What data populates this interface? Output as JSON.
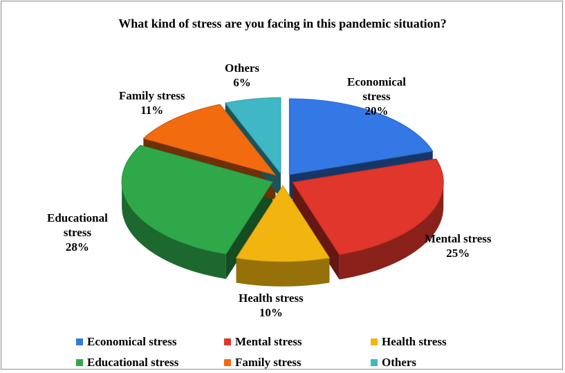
{
  "chart_data": {
    "type": "pie",
    "title": "What kind of stress are you facing in this pandemic situation?",
    "slices": [
      {
        "name": "Economical stress",
        "label_lines": [
          "Economical",
          "stress"
        ],
        "percent_label": "20%",
        "value": 20,
        "color": "#3478e6"
      },
      {
        "name": "Mental stress",
        "label_lines": [
          "Mental stress"
        ],
        "percent_label": "25%",
        "value": 25,
        "color": "#e0362b"
      },
      {
        "name": "Health stress",
        "label_lines": [
          "Health stress"
        ],
        "percent_label": "10%",
        "value": 10,
        "color": "#f2b50f"
      },
      {
        "name": "Educational stress",
        "label_lines": [
          "Educational",
          "stress"
        ],
        "percent_label": "28%",
        "value": 28,
        "color": "#2fa84a"
      },
      {
        "name": "Family stress",
        "label_lines": [
          "Family stress"
        ],
        "percent_label": "11%",
        "value": 11,
        "color": "#f26b0f"
      },
      {
        "name": "Others",
        "label_lines": [
          "Others"
        ],
        "percent_label": "6%",
        "value": 6,
        "color": "#3fb7c4"
      }
    ],
    "legend_position": "bottom",
    "exploded": true,
    "style": "3d"
  }
}
